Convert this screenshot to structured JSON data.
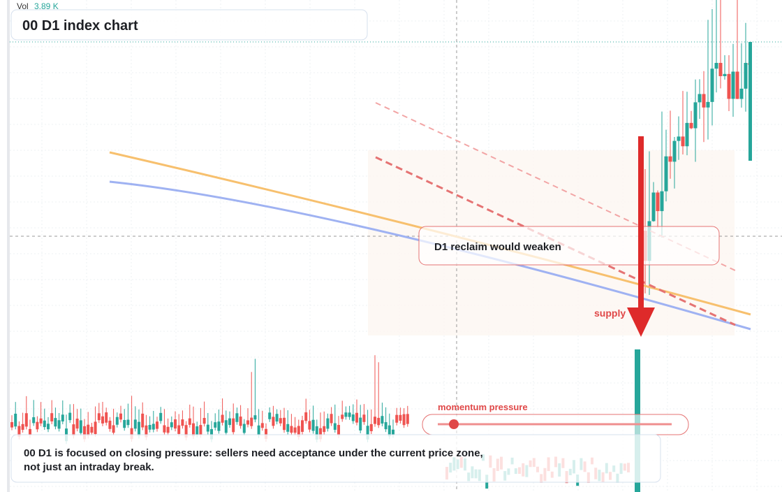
{
  "header": {
    "vol_label": "Vol",
    "vol_value": "3.89 K",
    "title": "00 D1 index chart"
  },
  "callout": {
    "text": "D1 reclaim would weaken"
  },
  "supply_label": "supply",
  "momentum": {
    "label": "momentum pressure"
  },
  "footer": {
    "lines": [
      "00 D1 is focused on closing pressure: sellers need acceptance under the current price zone,",
      "not just an intraday break."
    ]
  }
}
